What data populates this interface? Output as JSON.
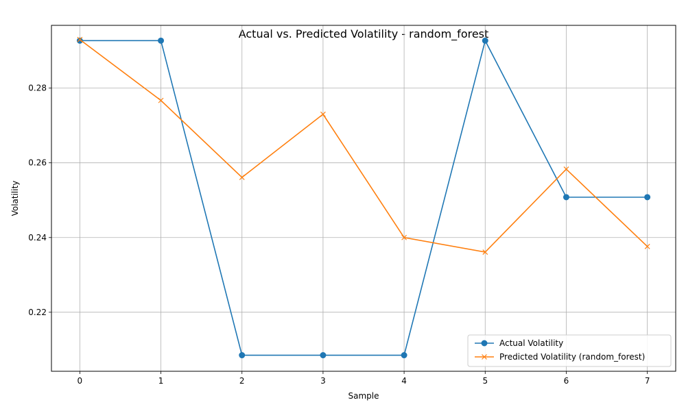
{
  "chart_data": {
    "type": "line",
    "title": "Actual vs. Predicted Volatility - random_forest",
    "xlabel": "Sample",
    "ylabel": "Volatility",
    "x": [
      0,
      1,
      2,
      3,
      4,
      5,
      6,
      7
    ],
    "xticks": [
      "0",
      "1",
      "2",
      "3",
      "4",
      "5",
      "6",
      "7"
    ],
    "yticks": [
      "0.22",
      "0.24",
      "0.26",
      "0.28"
    ],
    "ytick_values": [
      0.22,
      0.24,
      0.26,
      0.28
    ],
    "xlim": [
      -0.35,
      7.35
    ],
    "ylim": [
      0.2042,
      0.2968
    ],
    "grid": true,
    "legend_position": "bottom-right",
    "series": [
      {
        "name": "Actual Volatility",
        "marker": "circle",
        "color": "#1f77b4",
        "values": [
          0.2927,
          0.2927,
          0.2085,
          0.2085,
          0.2085,
          0.2927,
          0.2508,
          0.2508
        ]
      },
      {
        "name": "Predicted Volatility (random_forest)",
        "marker": "x",
        "color": "#ff7f0e",
        "values": [
          0.293,
          0.2767,
          0.2561,
          0.273,
          0.24,
          0.2361,
          0.2583,
          0.2376
        ]
      }
    ]
  }
}
